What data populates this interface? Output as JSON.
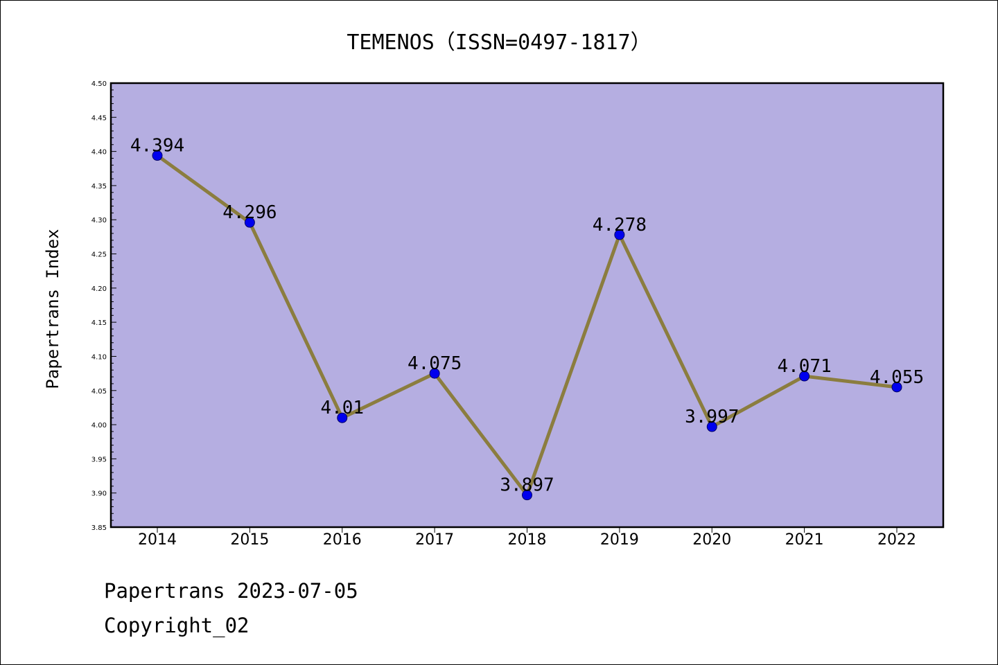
{
  "chart_data": {
    "type": "line",
    "title": "TEMENOS（ISSN=0497-1817）",
    "xlabel": "",
    "ylabel": "Papertrans Index",
    "x": [
      "2014",
      "2015",
      "2016",
      "2017",
      "2018",
      "2019",
      "2020",
      "2021",
      "2022"
    ],
    "series": [
      {
        "values": [
          4.394,
          4.296,
          4.01,
          4.075,
          3.897,
          4.278,
          3.997,
          4.071,
          4.055
        ],
        "labels": [
          "4.394",
          "4.296",
          "4.01",
          "4.075",
          "3.897",
          "4.278",
          "3.997",
          "4.071",
          "4.055"
        ]
      }
    ],
    "ylim": [
      3.85,
      4.5
    ],
    "yticks": [
      "3.85",
      "3.90",
      "3.95",
      "4.00",
      "4.05",
      "4.10",
      "4.15",
      "4.20",
      "4.25",
      "4.30",
      "4.35",
      "4.40",
      "4.45",
      "4.50"
    ],
    "grid": false,
    "colors": {
      "plot_background": "#b5aee1",
      "line": "#8b7d3f",
      "marker": "#0000ee",
      "marker_edge": "#000066"
    }
  },
  "footer": {
    "date_text": "Papertrans 2023-07-05",
    "copyright_text": "Copyright_02"
  }
}
